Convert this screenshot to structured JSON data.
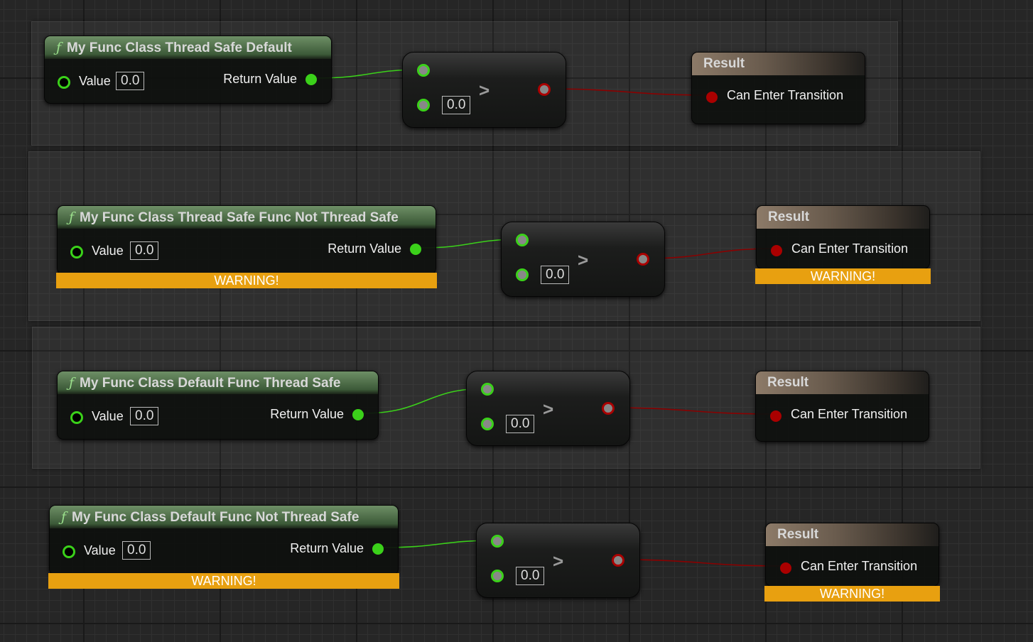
{
  "sections": [
    {
      "title": "My Func Class Thread Safe Default",
      "value_label": "Value",
      "value": "0.0",
      "return_label": "Return Value",
      "compare_value": "0.0",
      "compare_op": ">",
      "result_title": "Result",
      "result_pin": "Can Enter Transition",
      "func_warning": null,
      "result_warning": null
    },
    {
      "title": "My Func Class Thread Safe Func Not Thread Safe",
      "value_label": "Value",
      "value": "0.0",
      "return_label": "Return Value",
      "compare_value": "0.0",
      "compare_op": ">",
      "result_title": "Result",
      "result_pin": "Can Enter Transition",
      "func_warning": "WARNING!",
      "result_warning": "WARNING!"
    },
    {
      "title": "My Func Class Default Func Thread Safe",
      "value_label": "Value",
      "value": "0.0",
      "return_label": "Return Value",
      "compare_value": "0.0",
      "compare_op": ">",
      "result_title": "Result",
      "result_pin": "Can Enter Transition",
      "func_warning": null,
      "result_warning": null
    },
    {
      "title": "My Func Class Default Func Not Thread Safe",
      "value_label": "Value",
      "value": "0.0",
      "return_label": "Return Value",
      "compare_value": "0.0",
      "compare_op": ">",
      "result_title": "Result",
      "result_pin": "Can Enter Transition",
      "func_warning": "WARNING!",
      "result_warning": "WARNING!"
    }
  ],
  "colors": {
    "float_pin": "#3bd11a",
    "bool_pin": "#aa0000",
    "warning": "#e8a010"
  },
  "icons": {
    "function": "function-icon",
    "compare": "greater-than-icon"
  }
}
